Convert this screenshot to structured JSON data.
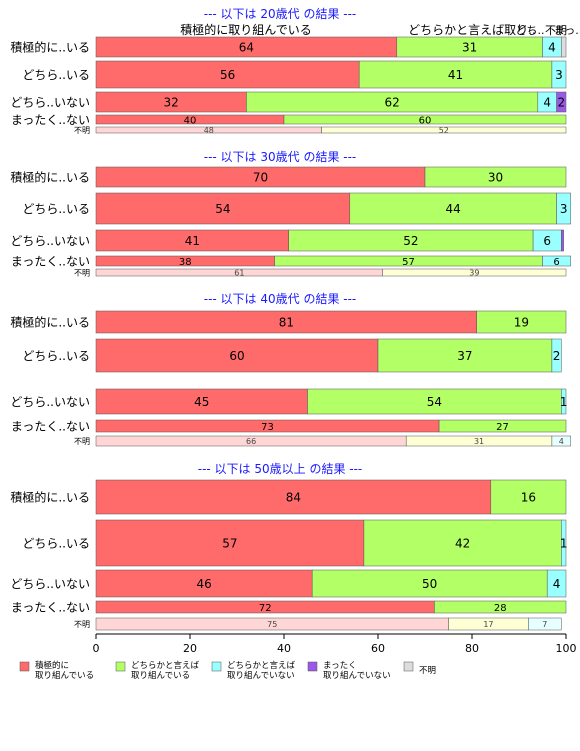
{
  "chart_data": {
    "type": "bar",
    "orientation": "horizontal",
    "stacked": true,
    "xlim": [
      0,
      100
    ],
    "x_ticks": [
      "0",
      "20",
      "40",
      "60",
      "80",
      "100"
    ],
    "grid": false,
    "legend_position": "bottom",
    "legend": [
      {
        "key": "s0",
        "name": "積極的に\n取り組んでいる",
        "color": "#FF6B6B"
      },
      {
        "key": "s1",
        "name": "どちらかと言えば\n取り組んでいる",
        "color": "#B3FF66"
      },
      {
        "key": "s2",
        "name": "どちらかと言えば\n取り組んでいない",
        "color": "#99FFFF"
      },
      {
        "key": "s3",
        "name": "まったく\n取り組んでいない",
        "color": "#9B59E8"
      },
      {
        "key": "s4",
        "name": "不明",
        "color": "#DDDDDD"
      }
    ],
    "panels": [
      {
        "title": "--- 以下は 20歳代 の結果 ---",
        "header_labels": [
          "積極的に取り組んでいる",
          "どちらかと言えば取り..",
          "どち..",
          "不明",
          "まっ.."
        ],
        "rows": [
          {
            "label": "積極的に..いる",
            "values": [
              64,
              31,
              4,
              0,
              1
            ],
            "labels": [
              "64",
              "31",
              "4",
              "",
              ""
            ]
          },
          {
            "label": "どちら..いる",
            "values": [
              56,
              41,
              3,
              0,
              0
            ],
            "labels": [
              "56",
              "41",
              "3",
              "",
              ""
            ]
          },
          {
            "label": "どちら..いない",
            "values": [
              32,
              62,
              4,
              2,
              0
            ],
            "labels": [
              "32",
              "62",
              "4",
              "2",
              ""
            ]
          },
          {
            "label": "まったく..ない",
            "values": [
              40,
              60,
              0,
              0,
              0
            ],
            "labels": [
              "40",
              "60",
              "",
              "",
              ""
            ]
          },
          {
            "label": "不明",
            "values": [
              48,
              52,
              0,
              0,
              0
            ],
            "labels": [
              "48",
              "52",
              "",
              "",
              ""
            ]
          }
        ]
      },
      {
        "title": "--- 以下は 30歳代 の結果 ---",
        "rows": [
          {
            "label": "積極的に..いる",
            "values": [
              70,
              30,
              0,
              0,
              0
            ],
            "labels": [
              "70",
              "30",
              "",
              "",
              ""
            ]
          },
          {
            "label": "どちら..いる",
            "values": [
              54,
              44,
              3,
              0,
              0
            ],
            "labels": [
              "54",
              "44",
              "3",
              "",
              ""
            ]
          },
          {
            "label": "どちら..いない",
            "values": [
              41,
              52,
              6,
              0.5,
              0
            ],
            "labels": [
              "41",
              "52",
              "6",
              "",
              ""
            ]
          },
          {
            "label": "まったく..ない",
            "values": [
              38,
              57,
              6,
              0,
              0
            ],
            "labels": [
              "38",
              "57",
              "6",
              "",
              ""
            ]
          },
          {
            "label": "不明",
            "values": [
              61,
              39,
              0,
              0,
              0
            ],
            "labels": [
              "61",
              "39",
              "",
              "",
              ""
            ]
          }
        ]
      },
      {
        "title": "--- 以下は 40歳代 の結果 ---",
        "rows": [
          {
            "label": "積極的に..いる",
            "values": [
              81,
              19,
              0,
              0,
              0
            ],
            "labels": [
              "81",
              "19",
              "",
              "",
              ""
            ]
          },
          {
            "label": "どちら..いる",
            "values": [
              60,
              37,
              2,
              0,
              0
            ],
            "labels": [
              "60",
              "37",
              "2",
              "",
              ""
            ]
          },
          {
            "label": "どちら..いない",
            "values": [
              45,
              54,
              1,
              0,
              0
            ],
            "labels": [
              "45",
              "54",
              "1",
              "",
              ""
            ]
          },
          {
            "label": "まったく..ない",
            "values": [
              73,
              27,
              0,
              0,
              0
            ],
            "labels": [
              "73",
              "27",
              "",
              "",
              ""
            ]
          },
          {
            "label": "不明",
            "values": [
              66,
              31,
              4,
              0,
              0
            ],
            "labels": [
              "66",
              "31",
              "4",
              "",
              ""
            ]
          }
        ]
      },
      {
        "title": "--- 以下は 50歳以上 の結果 ---",
        "rows": [
          {
            "label": "積極的に..いる",
            "values": [
              84,
              16,
              0,
              0,
              0
            ],
            "labels": [
              "84",
              "16",
              "",
              "",
              ""
            ]
          },
          {
            "label": "どちら..いる",
            "values": [
              57,
              42,
              1,
              0,
              0
            ],
            "labels": [
              "57",
              "42",
              "1",
              "",
              ""
            ]
          },
          {
            "label": "どちら..いない",
            "values": [
              46,
              50,
              4,
              0,
              0
            ],
            "labels": [
              "46",
              "50",
              "4",
              "",
              ""
            ]
          },
          {
            "label": "まったく..ない",
            "values": [
              72,
              28,
              0,
              0,
              0
            ],
            "labels": [
              "72",
              "28",
              "",
              "",
              ""
            ]
          },
          {
            "label": "不明",
            "values": [
              75,
              17,
              7,
              0,
              0
            ],
            "labels": [
              "75",
              "17",
              "7",
              "",
              ""
            ]
          }
        ]
      }
    ]
  }
}
